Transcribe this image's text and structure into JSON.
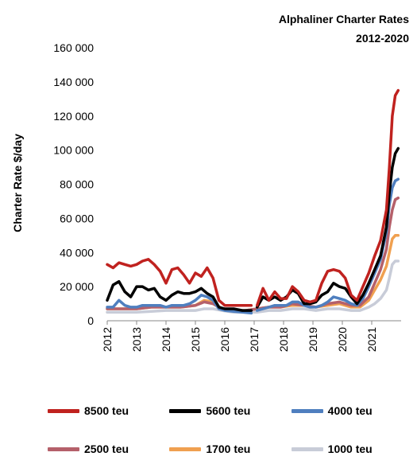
{
  "chart_data": {
    "type": "line",
    "title": "Alphaliner Charter Rates",
    "subtitle": "2012-2020",
    "ylabel": "Charter Rate $/day",
    "xlabel": "",
    "ylim": [
      0,
      160000
    ],
    "xlim": [
      2012,
      2022
    ],
    "y_ticks": [
      "160 000",
      "140 000",
      "120 000",
      "100 000",
      "80 000",
      "60 000",
      "40 000",
      "20 000",
      "0"
    ],
    "y_tick_values": [
      160000,
      140000,
      120000,
      100000,
      80000,
      60000,
      40000,
      20000,
      0
    ],
    "x_ticks": [
      "2012",
      "2013",
      "2014",
      "2015",
      "2016",
      "2017",
      "2018",
      "2019",
      "2020",
      "2021"
    ],
    "x_tick_values": [
      2012,
      2013,
      2014,
      2015,
      2016,
      2017,
      2018,
      2019,
      2020,
      2021
    ],
    "grid": false,
    "legend_position": "bottom",
    "series": [
      {
        "name": "8500 teu",
        "color": "#c0221f",
        "x": [
          2012.0,
          2012.2,
          2012.4,
          2012.6,
          2012.8,
          2013.0,
          2013.2,
          2013.4,
          2013.6,
          2013.8,
          2014.0,
          2014.2,
          2014.4,
          2014.6,
          2014.8,
          2015.0,
          2015.2,
          2015.4,
          2015.6,
          2015.8,
          2016.0,
          2016.3,
          2016.6,
          2016.9
        ],
        "y": [
          33000,
          31000,
          34000,
          33000,
          32000,
          33000,
          35000,
          36000,
          33000,
          29000,
          22000,
          30000,
          31000,
          27000,
          22000,
          28000,
          26000,
          31000,
          25000,
          12000,
          9000,
          9000,
          9000,
          9000
        ]
      },
      {
        "name": "8500 teu",
        "color": "#c0221f",
        "x": [
          2017.1,
          2017.3,
          2017.5,
          2017.7,
          2017.9,
          2018.1,
          2018.3,
          2018.5,
          2018.7,
          2018.9,
          2019.1,
          2019.3,
          2019.5,
          2019.7,
          2019.9,
          2020.1,
          2020.3,
          2020.5,
          2020.7,
          2020.9,
          2021.1,
          2021.3,
          2021.5,
          2021.6,
          2021.7,
          2021.8,
          2021.9
        ],
        "y": [
          9000,
          19000,
          12000,
          17000,
          13000,
          13000,
          20000,
          17000,
          12000,
          11000,
          12000,
          22000,
          29000,
          30000,
          29000,
          25000,
          15000,
          12000,
          20000,
          28000,
          38000,
          47000,
          65000,
          90000,
          120000,
          132000,
          135000
        ]
      },
      {
        "name": "5600 teu",
        "color": "#000000",
        "x": [
          2012.0,
          2012.2,
          2012.4,
          2012.6,
          2012.8,
          2013.0,
          2013.2,
          2013.4,
          2013.6,
          2013.8,
          2014.0,
          2014.2,
          2014.4,
          2014.6,
          2014.8,
          2015.0,
          2015.2,
          2015.4,
          2015.6,
          2015.8,
          2016.0,
          2016.3,
          2016.6,
          2016.9
        ],
        "y": [
          12000,
          21000,
          23000,
          17000,
          14000,
          20000,
          20000,
          18000,
          19000,
          14000,
          12000,
          15000,
          17000,
          16000,
          16000,
          17000,
          19000,
          16000,
          14000,
          8000,
          7000,
          7000,
          6000,
          6000
        ]
      },
      {
        "name": "5600 teu",
        "color": "#000000",
        "x": [
          2017.1,
          2017.3,
          2017.5,
          2017.7,
          2017.9,
          2018.1,
          2018.3,
          2018.5,
          2018.7,
          2018.9,
          2019.1,
          2019.3,
          2019.5,
          2019.7,
          2019.9,
          2020.1,
          2020.3,
          2020.5,
          2020.7,
          2020.9,
          2021.1,
          2021.3,
          2021.5,
          2021.6,
          2021.7,
          2021.8,
          2021.9
        ],
        "y": [
          8000,
          14000,
          12000,
          14000,
          12000,
          14000,
          18000,
          16000,
          10000,
          10000,
          11000,
          15000,
          17000,
          22000,
          20000,
          19000,
          14000,
          10000,
          15000,
          22000,
          30000,
          38000,
          55000,
          75000,
          90000,
          98000,
          101000
        ]
      },
      {
        "name": "4000 teu",
        "color": "#4f7fbf",
        "x": [
          2012.0,
          2012.2,
          2012.4,
          2012.6,
          2012.8,
          2013.0,
          2013.2,
          2013.4,
          2013.6,
          2013.8,
          2014.0,
          2014.2,
          2014.4,
          2014.6,
          2014.8,
          2015.0,
          2015.2,
          2015.4,
          2015.6,
          2015.8,
          2016.0,
          2016.3,
          2016.6,
          2016.9
        ],
        "y": [
          8000,
          8000,
          12000,
          9000,
          8000,
          8000,
          9000,
          9000,
          9000,
          9000,
          8000,
          9000,
          9000,
          9000,
          10000,
          12000,
          15000,
          14000,
          12000,
          7000,
          6000,
          5500,
          5000,
          4500
        ]
      },
      {
        "name": "4000 teu",
        "color": "#4f7fbf",
        "x": [
          2017.1,
          2017.3,
          2017.5,
          2017.7,
          2017.9,
          2018.1,
          2018.3,
          2018.5,
          2018.7,
          2018.9,
          2019.1,
          2019.3,
          2019.5,
          2019.7,
          2019.9,
          2020.1,
          2020.3,
          2020.5,
          2020.7,
          2020.9,
          2021.1,
          2021.3,
          2021.5,
          2021.6,
          2021.7,
          2021.8,
          2021.9
        ],
        "y": [
          6000,
          7000,
          8000,
          9000,
          9000,
          9000,
          11000,
          11000,
          9000,
          8000,
          8000,
          9000,
          11000,
          14000,
          13000,
          12000,
          10000,
          9000,
          13000,
          20000,
          28000,
          36000,
          52000,
          68000,
          78000,
          82000,
          83000
        ]
      },
      {
        "name": "2500 teu",
        "color": "#b5606a",
        "x": [
          2012.0,
          2012.5,
          2013.0,
          2013.5,
          2014.0,
          2014.5,
          2015.0,
          2015.3,
          2015.6,
          2015.9,
          2016.3,
          2016.7,
          2017.1,
          2017.5,
          2017.9,
          2018.3,
          2018.7,
          2019.1,
          2019.5,
          2019.9,
          2020.3,
          2020.6,
          2020.9,
          2021.1,
          2021.3,
          2021.5,
          2021.6,
          2021.7,
          2021.8,
          2021.9
        ],
        "y": [
          7000,
          7000,
          7000,
          8000,
          8000,
          8000,
          9000,
          11000,
          10000,
          7000,
          6000,
          6000,
          7000,
          8000,
          8000,
          10000,
          9000,
          8000,
          10000,
          11000,
          9000,
          9000,
          14000,
          22000,
          30000,
          42000,
          55000,
          65000,
          71000,
          72000
        ]
      },
      {
        "name": "1700 teu",
        "color": "#f0a050",
        "x": [
          2012.0,
          2012.5,
          2013.0,
          2013.5,
          2014.0,
          2014.5,
          2015.0,
          2015.3,
          2015.6,
          2015.9,
          2016.3,
          2016.7,
          2017.1,
          2017.5,
          2017.9,
          2018.3,
          2018.7,
          2019.1,
          2019.5,
          2019.9,
          2020.3,
          2020.6,
          2020.9,
          2021.1,
          2021.3,
          2021.5,
          2021.6,
          2021.7,
          2021.8,
          2021.9
        ],
        "y": [
          7000,
          7000,
          7000,
          8000,
          8000,
          8000,
          9000,
          12000,
          11000,
          7000,
          6000,
          6000,
          7000,
          8000,
          8000,
          9000,
          9000,
          8000,
          9000,
          10000,
          8000,
          8000,
          12000,
          18000,
          24000,
          32000,
          40000,
          48000,
          50000,
          50000
        ]
      },
      {
        "name": "1000 teu",
        "color": "#c8ccd8",
        "x": [
          2012.0,
          2012.5,
          2013.0,
          2013.5,
          2014.0,
          2014.5,
          2015.0,
          2015.3,
          2015.6,
          2015.9,
          2016.3,
          2016.7,
          2017.1,
          2017.5,
          2017.9,
          2018.3,
          2018.7,
          2019.1,
          2019.5,
          2019.9,
          2020.3,
          2020.6,
          2020.9,
          2021.1,
          2021.3,
          2021.5,
          2021.6,
          2021.7,
          2021.8,
          2021.9
        ],
        "y": [
          5000,
          5000,
          5000,
          5500,
          6000,
          6000,
          6000,
          7000,
          7000,
          6000,
          5000,
          5000,
          5000,
          6000,
          6000,
          7000,
          7000,
          6000,
          7000,
          7000,
          6000,
          6000,
          8000,
          10000,
          13000,
          18000,
          25000,
          33000,
          35000,
          35000
        ]
      }
    ]
  },
  "legend": {
    "items": [
      {
        "label": "8500 teu",
        "color": "#c0221f"
      },
      {
        "label": "5600 teu",
        "color": "#000000"
      },
      {
        "label": "4000 teu",
        "color": "#4f7fbf"
      },
      {
        "label": "2500 teu",
        "color": "#b5606a"
      },
      {
        "label": "1700 teu",
        "color": "#f0a050"
      },
      {
        "label": "1000 teu",
        "color": "#c8ccd8"
      }
    ]
  }
}
